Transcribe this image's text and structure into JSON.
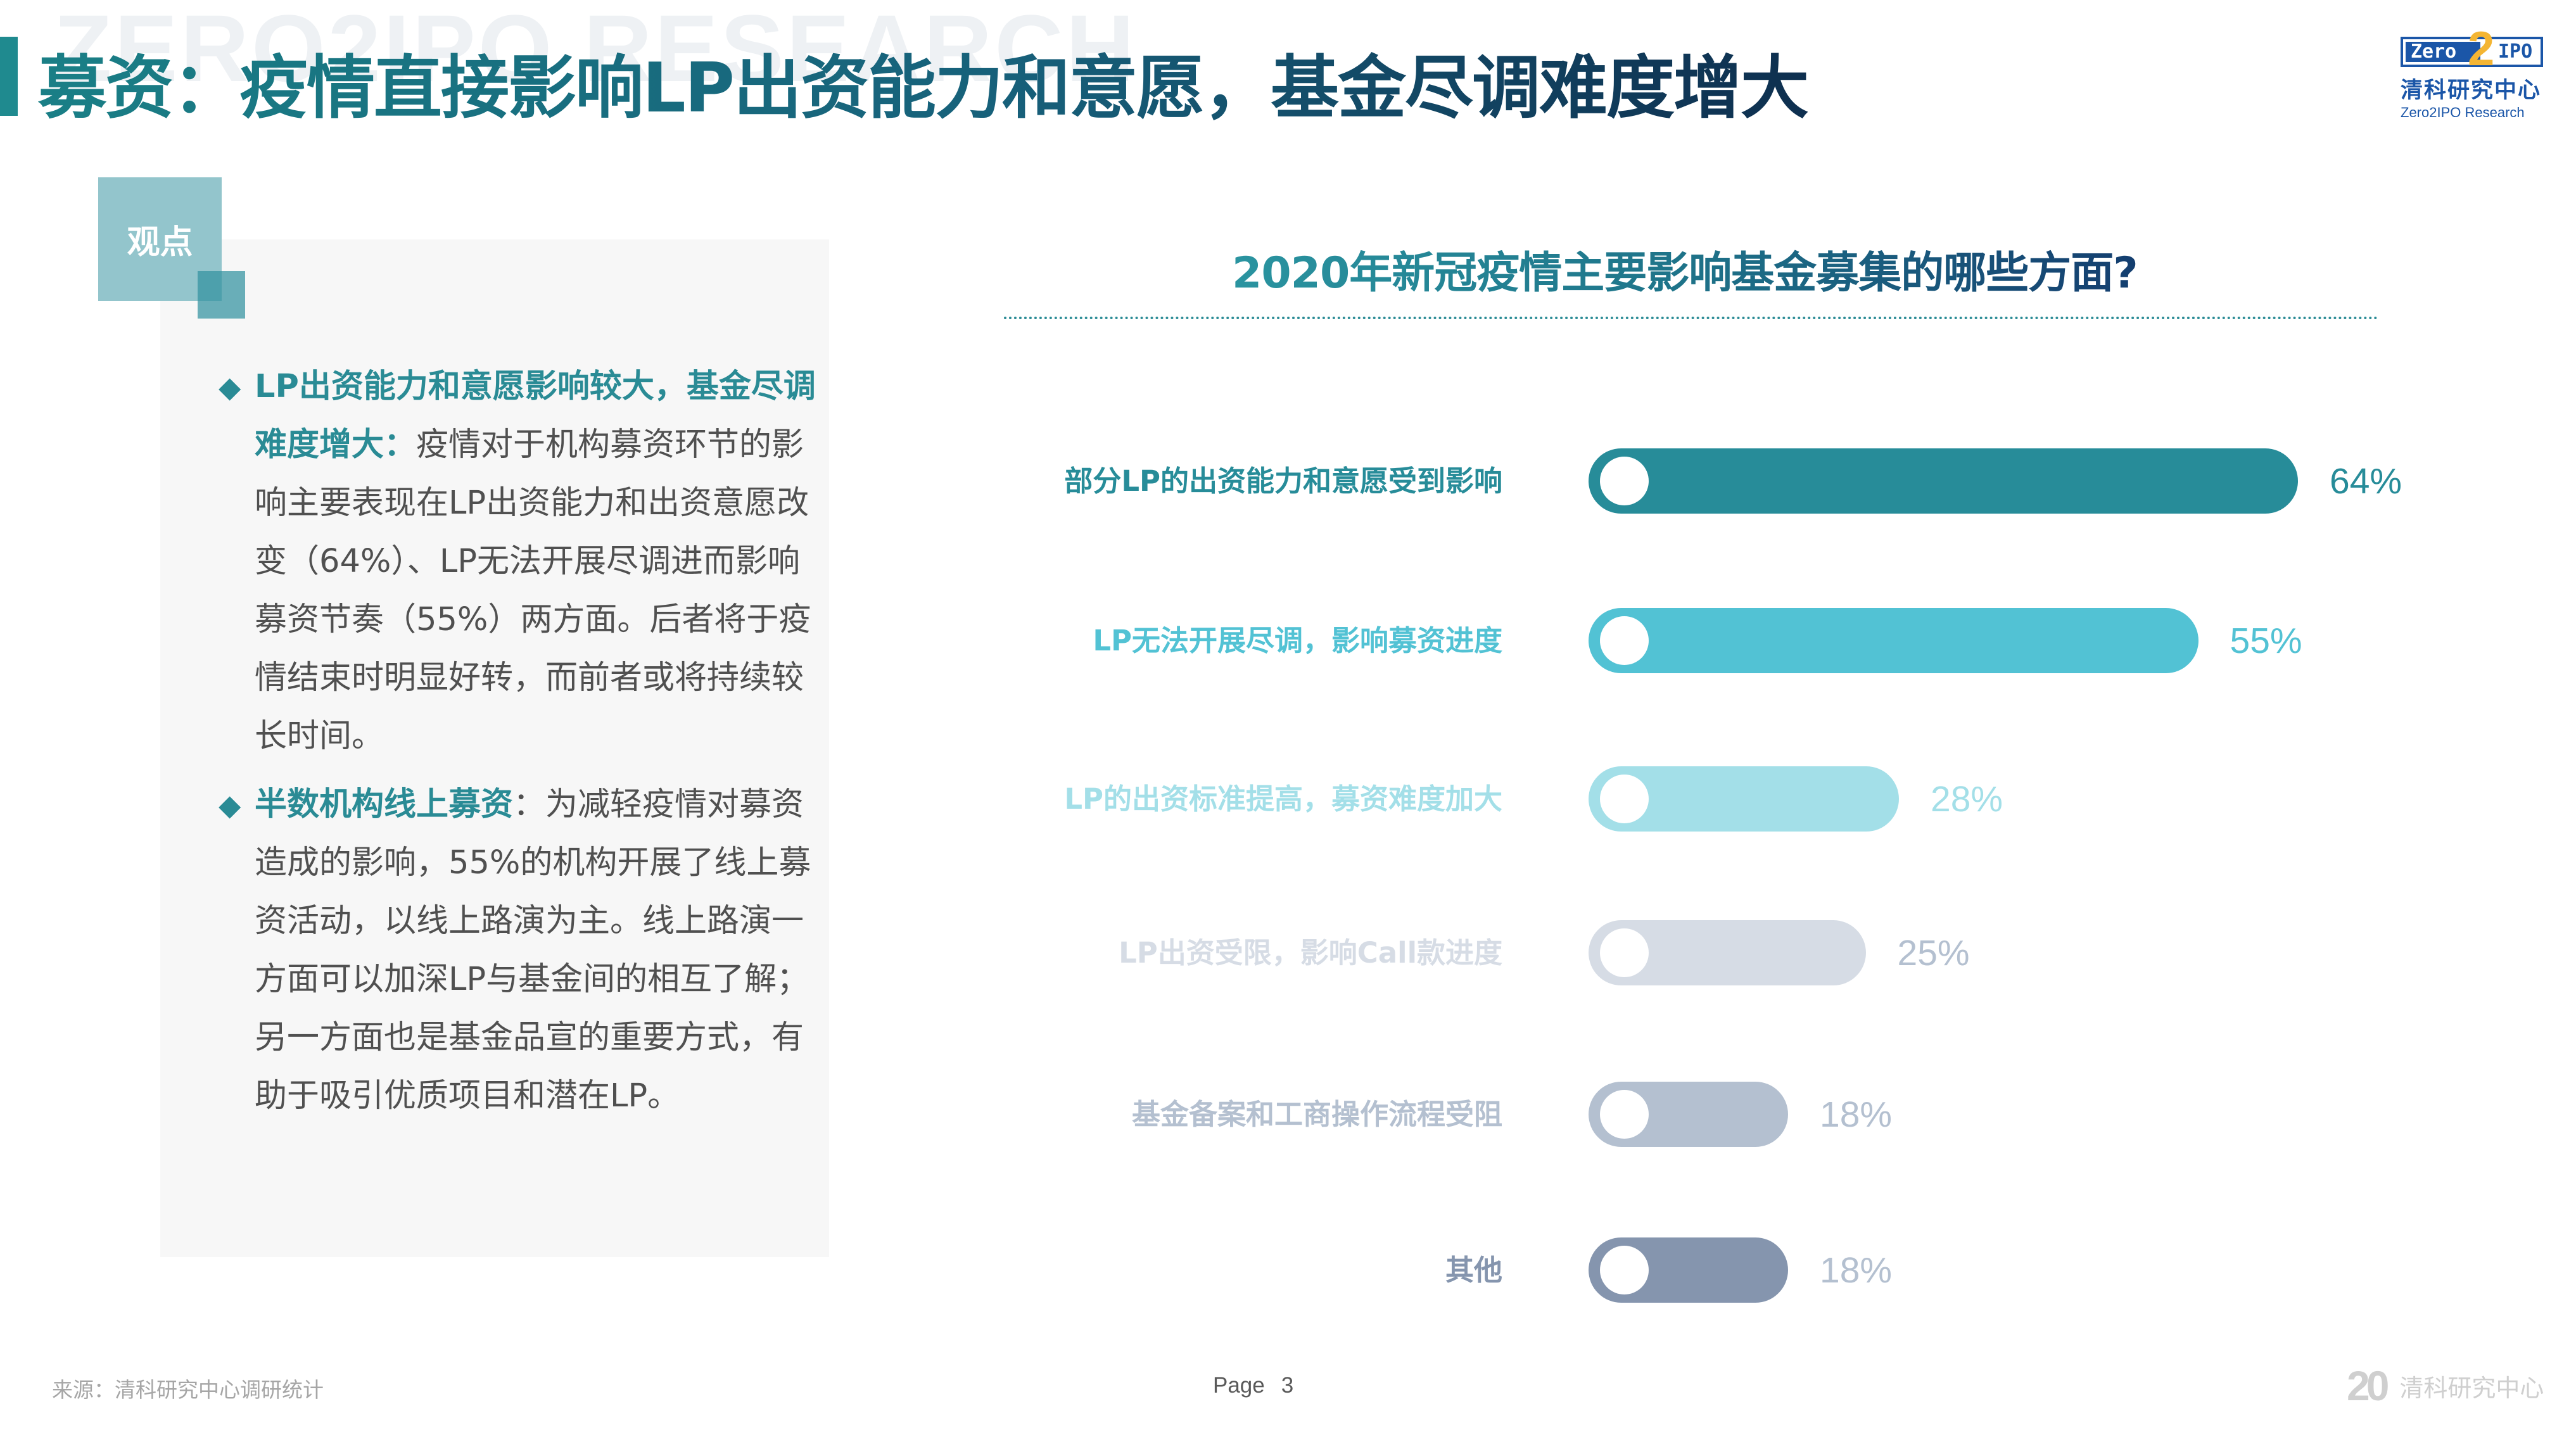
{
  "header": {
    "watermark": "ZERO2IPO RESEARCH",
    "title": "募资：疫情直接影响LP出资能力和意愿，基金尽调难度增大"
  },
  "logo": {
    "zero": "Zero",
    "two": "2",
    "ipo": "IPO",
    "cn": "清科研究中心",
    "en": "Zero2IPO Research"
  },
  "viewpoint": {
    "tag": "观点",
    "bullets": [
      {
        "head": "LP出资能力和意愿影响较大，基金尽调难度增大：",
        "body": "疫情对于机构募资环节的影响主要表现在LP出资能力和出资意愿改变（64%）、LP无法开展尽调进而影响募资节奏（55%）两方面。后者将于疫情结束时明显好转，而前者或将持续较长时间。"
      },
      {
        "head": "半数机构线上募资",
        "body": "：为减轻疫情对募资造成的影响，55%的机构开展了线上募资活动，以线上路演为主。线上路演一方面可以加深LP与基金间的相互了解；另一方面也是基金品宣的重要方式，有助于吸引优质项目和潜在LP。"
      }
    ]
  },
  "chart_data": {
    "type": "bar",
    "orientation": "horizontal",
    "title": "2020年新冠疫情主要影响基金募集的哪些方面?",
    "xlabel": "",
    "ylabel": "",
    "xlim": [
      0,
      70
    ],
    "grid": false,
    "legend": "none",
    "categories": [
      "部分LP的出资能力和意愿受到影响",
      "LP无法开展尽调，影响募资进度",
      "LP的出资标准提高，募资难度加大",
      "LP出资受限，影响Call款进度",
      "基金备案和工商操作流程受阻",
      "其他"
    ],
    "values": [
      64,
      55,
      28,
      25,
      18,
      18
    ],
    "value_labels": [
      "64%",
      "55%",
      "28%",
      "25%",
      "18%",
      "18%"
    ],
    "bar_colors": [
      "#278c99",
      "#52c2d4",
      "#a3dfe8",
      "#d6dce5",
      "#b4c0d0",
      "#8595ae"
    ],
    "label_colors": [
      "#278c99",
      "#52c2d4",
      "#a3dfe8",
      "#d6dce5",
      "#b4c0d0",
      "#8595ae"
    ],
    "value_colors": [
      "#278c99",
      "#52c2d4",
      "#a3dfe8",
      "#b4c0d0",
      "#b4c0d0",
      "#b4c0d0"
    ]
  },
  "footer": {
    "source": "来源：清科研究中心调研统计",
    "page_label": "Page",
    "page_number": "3",
    "brand_number": "20",
    "brand_text": "清科研究中心"
  }
}
